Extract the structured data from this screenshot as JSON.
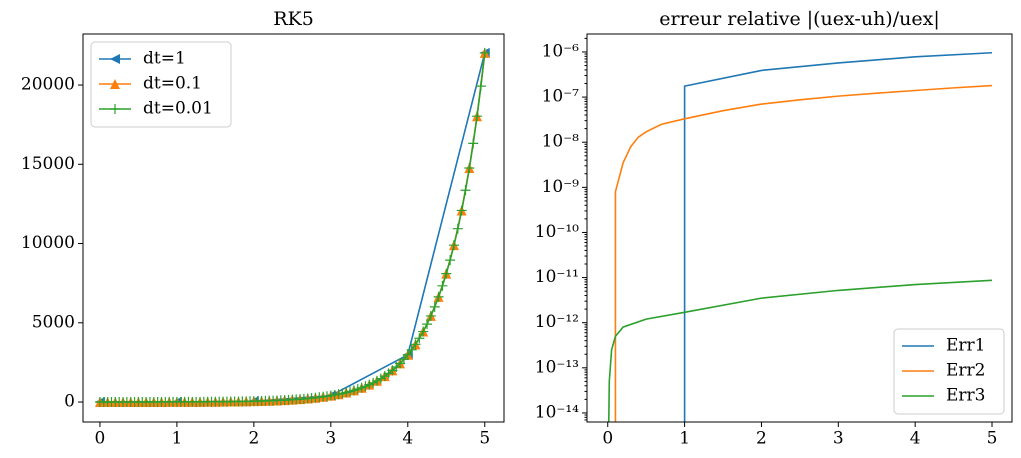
{
  "chart_data": [
    {
      "type": "line",
      "title": "RK5",
      "xlim": [
        -0.22,
        5.25
      ],
      "ylim": [
        -1260,
        23220
      ],
      "xticks": [
        0,
        1,
        2,
        3,
        4,
        5
      ],
      "yticks": [
        0,
        5000,
        10000,
        15000,
        20000
      ],
      "legend": "upper-left",
      "series": [
        {
          "name": "dt=1",
          "color": "#1f77b4",
          "marker": "triangle-left",
          "x": [
            0,
            1,
            2,
            3,
            4,
            5
          ],
          "values": [
            1,
            7.39,
            54.6,
            403,
            2981,
            22026
          ]
        },
        {
          "name": "dt=0.1",
          "color": "#ff7f0e",
          "marker": "triangle-up",
          "x": [
            0,
            0.1,
            0.2,
            0.3,
            0.4,
            0.5,
            0.6,
            0.7,
            0.8,
            0.9,
            1,
            1.1,
            1.2,
            1.3,
            1.4,
            1.5,
            1.6,
            1.7,
            1.8,
            1.9,
            2,
            2.1,
            2.2,
            2.3,
            2.4,
            2.5,
            2.6,
            2.7,
            2.8,
            2.9,
            3,
            3.1,
            3.2,
            3.3,
            3.4,
            3.5,
            3.6,
            3.7,
            3.8,
            3.9,
            4,
            4.1,
            4.2,
            4.3,
            4.4,
            4.5,
            4.6,
            4.7,
            4.8,
            4.9,
            5
          ],
          "values": [
            1,
            1.22,
            1.49,
            1.82,
            2.23,
            2.72,
            3.32,
            4.06,
            4.95,
            6.05,
            7.39,
            9.03,
            11.02,
            13.46,
            16.44,
            20.09,
            24.5,
            30.0,
            36.6,
            44.7,
            54.6,
            66.7,
            81.5,
            99.5,
            122,
            148,
            181,
            221,
            270,
            330,
            403,
            493,
            602,
            735,
            898,
            1097,
            1339,
            1636,
            1998,
            2441,
            2981,
            3641,
            4447,
            5432,
            6634,
            8103,
            9897,
            12088,
            14765,
            18034,
            22026
          ]
        },
        {
          "name": "dt=0.01",
          "color": "#2ca02c",
          "marker": "plus",
          "x": [
            0,
            0.05,
            0.1,
            0.15,
            0.2,
            0.25,
            0.3,
            0.35,
            0.4,
            0.45,
            0.5,
            0.55,
            0.6,
            0.65,
            0.7,
            0.75,
            0.8,
            0.85,
            0.9,
            0.95,
            1,
            1.05,
            1.1,
            1.15,
            1.2,
            1.25,
            1.3,
            1.35,
            1.4,
            1.45,
            1.5,
            1.55,
            1.6,
            1.65,
            1.7,
            1.75,
            1.8,
            1.85,
            1.9,
            1.95,
            2,
            2.05,
            2.1,
            2.15,
            2.2,
            2.25,
            2.3,
            2.35,
            2.4,
            2.45,
            2.5,
            2.55,
            2.6,
            2.65,
            2.7,
            2.75,
            2.8,
            2.85,
            2.9,
            2.95,
            3,
            3.05,
            3.1,
            3.15,
            3.2,
            3.25,
            3.3,
            3.35,
            3.4,
            3.45,
            3.5,
            3.55,
            3.6,
            3.65,
            3.7,
            3.75,
            3.8,
            3.85,
            3.9,
            3.95,
            4,
            4.05,
            4.1,
            4.15,
            4.2,
            4.25,
            4.3,
            4.35,
            4.4,
            4.45,
            4.5,
            4.55,
            4.6,
            4.65,
            4.7,
            4.75,
            4.8,
            4.85,
            4.9,
            4.95,
            5
          ],
          "values": [
            1,
            1.11,
            1.22,
            1.35,
            1.49,
            1.65,
            1.82,
            2.01,
            2.23,
            2.46,
            2.72,
            3.0,
            3.32,
            3.67,
            4.06,
            4.48,
            4.95,
            5.47,
            6.05,
            6.69,
            7.39,
            8.17,
            9.03,
            9.97,
            11.02,
            12.18,
            13.46,
            14.88,
            16.44,
            18.17,
            20.09,
            22.2,
            24.5,
            27.1,
            30.0,
            33.1,
            36.6,
            40.4,
            44.7,
            49.4,
            54.6,
            60.3,
            66.7,
            73.7,
            81.5,
            90.0,
            99.5,
            110,
            122,
            134,
            148,
            164,
            181,
            200,
            221,
            245,
            270,
            299,
            330,
            365,
            403,
            446,
            493,
            545,
            602,
            665,
            735,
            812,
            898,
            992,
            1097,
            1212,
            1339,
            1480,
            1636,
            1808,
            1998,
            2208,
            2441,
            2697,
            2981,
            3294,
            3641,
            4024,
            4447,
            4915,
            5432,
            6003,
            6634,
            7332,
            8103,
            8955,
            9897,
            10938,
            12088,
            13360,
            14765,
            16318,
            18034,
            19930,
            22026
          ]
        }
      ]
    },
    {
      "type": "line",
      "title": "erreur relative |(uex-uh)/uex|",
      "log_y": true,
      "xlim": [
        -0.27,
        5.26
      ],
      "ylim": [
        6.3e-15,
        2.5e-06
      ],
      "xticks": [
        0,
        1,
        2,
        3,
        4,
        5
      ],
      "yticks": [
        {
          "value": 1e-14,
          "label": "10⁻¹⁴"
        },
        {
          "value": 1e-13,
          "label": "10⁻¹³"
        },
        {
          "value": 1e-12,
          "label": "10⁻¹²"
        },
        {
          "value": 1e-11,
          "label": "10⁻¹¹"
        },
        {
          "value": 1e-10,
          "label": "10⁻¹⁰"
        },
        {
          "value": 1e-09,
          "label": "10⁻⁹"
        },
        {
          "value": 1e-08,
          "label": "10⁻⁸"
        },
        {
          "value": 1e-07,
          "label": "10⁻⁷"
        },
        {
          "value": 1e-06,
          "label": "10⁻⁶"
        }
      ],
      "legend": "lower-right",
      "series": [
        {
          "name": "Err1",
          "color": "#1f77b4",
          "x": [
            1,
            1,
            2,
            3,
            4,
            5
          ],
          "values": [
            0,
            1.75e-07,
            3.9e-07,
            5.7e-07,
            7.8e-07,
            9.6e-07
          ]
        },
        {
          "name": "Err2",
          "color": "#ff7f0e",
          "x": [
            0.1,
            0.1,
            0.2,
            0.3,
            0.4,
            0.5,
            0.7,
            1,
            1.5,
            2,
            2.5,
            3,
            3.5,
            4,
            4.5,
            5
          ],
          "values": [
            0,
            8e-10,
            3.5e-09,
            8e-09,
            1.3e-08,
            1.7e-08,
            2.5e-08,
            3.3e-08,
            5e-08,
            7e-08,
            8.7e-08,
            1.05e-07,
            1.22e-07,
            1.4e-07,
            1.6e-07,
            1.8e-07
          ]
        },
        {
          "name": "Err3",
          "color": "#2ca02c",
          "x": [
            0.01,
            0.02,
            0.05,
            0.1,
            0.2,
            0.5,
            1,
            2,
            3,
            4,
            5
          ],
          "values": [
            0,
            5e-14,
            2.5e-13,
            5e-13,
            8e-13,
            1.2e-12,
            1.7e-12,
            3.5e-12,
            5.2e-12,
            7e-12,
            8.7e-12
          ]
        }
      ]
    }
  ]
}
